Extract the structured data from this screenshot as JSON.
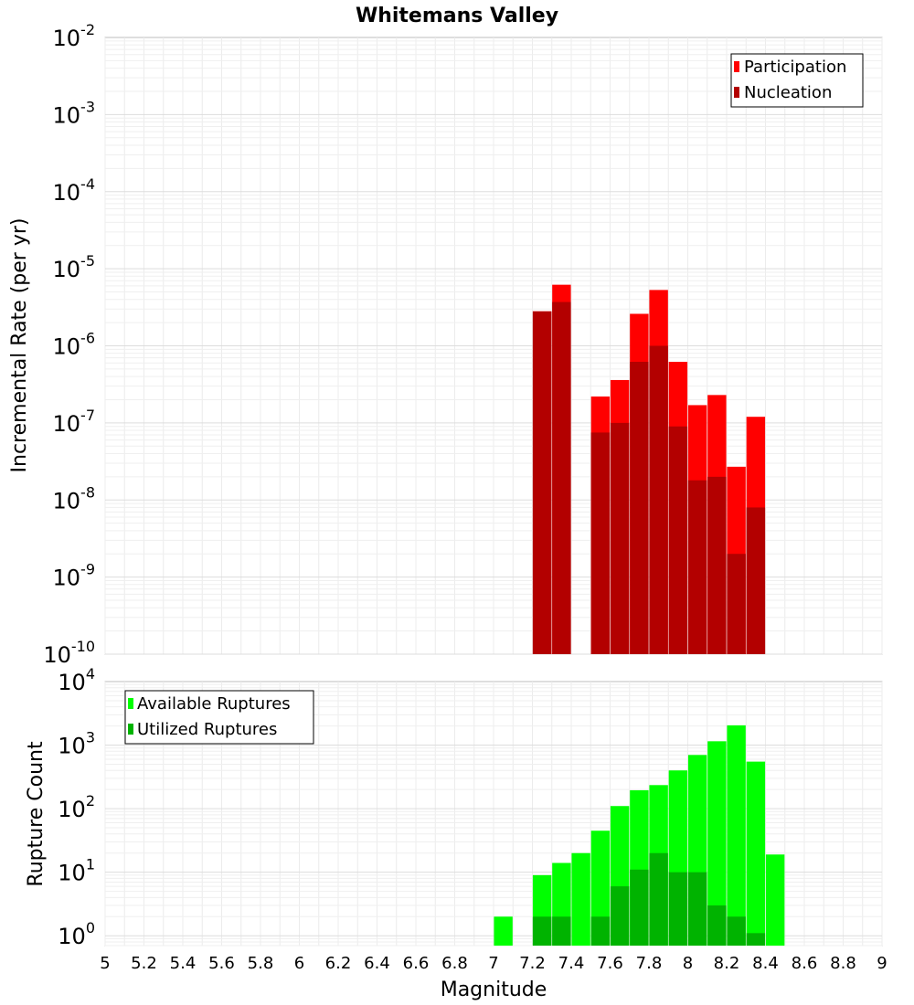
{
  "title": "Whitemans Valley",
  "colors": {
    "participation": "#ff0000",
    "nucleation": "#b30000",
    "available": "#00ff00",
    "utilized": "#00b300"
  },
  "chart_data": [
    {
      "type": "bar",
      "title": "Whitemans Valley",
      "xlabel": "",
      "ylabel": "Incremental Rate (per yr)",
      "xlim": [
        5,
        9
      ],
      "ylim": [
        1e-10,
        0.01
      ],
      "yscale": "log",
      "grid": true,
      "legend_position": "top-right",
      "ytick_exponents": [
        "-2",
        "-3",
        "-4",
        "-5",
        "-6",
        "-7",
        "-8",
        "-9",
        "-10"
      ],
      "x": [
        7.25,
        7.35,
        7.55,
        7.65,
        7.75,
        7.85,
        7.95,
        8.05,
        8.15,
        8.25,
        8.35
      ],
      "series": [
        {
          "name": "Participation",
          "values": [
            2.8e-06,
            6.2e-06,
            2.2e-07,
            3.6e-07,
            2.6e-06,
            5.3e-06,
            6.2e-07,
            1.7e-07,
            2.3e-07,
            2.7e-08,
            1.2e-07
          ]
        },
        {
          "name": "Nucleation",
          "values": [
            2.8e-06,
            3.7e-06,
            7.5e-08,
            1e-07,
            6.2e-07,
            1e-06,
            9e-08,
            1.8e-08,
            2e-08,
            2e-09,
            8e-09
          ]
        }
      ]
    },
    {
      "type": "bar",
      "xlabel": "Magnitude",
      "ylabel": "Rupture Count",
      "xlim": [
        5,
        9
      ],
      "ylim": [
        0.7,
        10000.0
      ],
      "yscale": "log",
      "grid": true,
      "legend_position": "top-left",
      "xticks": [
        "5",
        "5.2",
        "5.4",
        "5.6",
        "5.8",
        "6",
        "6.2",
        "6.4",
        "6.6",
        "6.8",
        "7",
        "7.2",
        "7.4",
        "7.6",
        "7.8",
        "8",
        "8.2",
        "8.4",
        "8.6",
        "8.8",
        "9"
      ],
      "ytick_exponents": [
        "4",
        "3",
        "2",
        "1",
        "0"
      ],
      "x": [
        7.05,
        7.25,
        7.35,
        7.45,
        7.55,
        7.65,
        7.75,
        7.85,
        7.95,
        8.05,
        8.15,
        8.25,
        8.35,
        8.45
      ],
      "series": [
        {
          "name": "Available Ruptures",
          "values": [
            2,
            9,
            14,
            20,
            45,
            110,
            195,
            235,
            400,
            700,
            1150,
            2050,
            550,
            19
          ]
        },
        {
          "name": "Utilized Ruptures",
          "values": [
            null,
            2,
            2,
            null,
            2,
            6,
            11,
            20,
            10,
            10,
            3,
            2,
            1.1,
            null
          ]
        }
      ]
    }
  ]
}
